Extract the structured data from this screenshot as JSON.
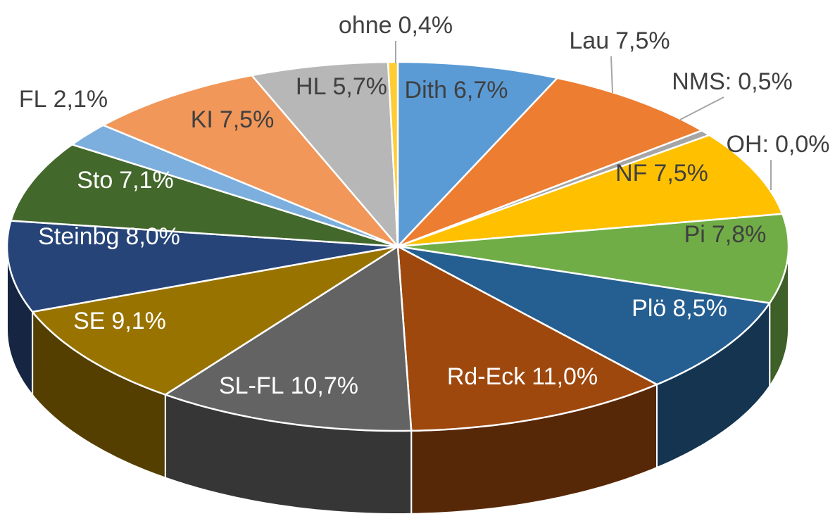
{
  "chart_data": {
    "type": "pie",
    "categories": [
      "Dith",
      "Lau",
      "NMS:",
      "NF",
      "OH:",
      "Pi",
      "Plö",
      "Rd-Eck",
      "SL-FL",
      "SE",
      "Steinbg",
      "Sto",
      "FL",
      "KI",
      "HL",
      "ohne"
    ],
    "values": [
      6.7,
      7.5,
      0.5,
      7.5,
      0.0,
      7.8,
      8.5,
      11.0,
      10.7,
      9.1,
      8.0,
      7.1,
      2.1,
      7.5,
      5.7,
      0.4
    ],
    "value_labels": [
      "6,7%",
      "7,5%",
      "0,5%",
      "7,5%",
      "0,0%",
      "7,8%",
      "8,5%",
      "11,0%",
      "10,7%",
      "9,1%",
      "8,0%",
      "7,1%",
      "2,1%",
      "7,5%",
      "5,7%",
      "0,4%"
    ],
    "colors": [
      "#5b9bd5",
      "#ed7d31",
      "#a5a5a5",
      "#ffc000",
      "#4472c4",
      "#70ad47",
      "#255e91",
      "#9e480e",
      "#636363",
      "#997300",
      "#264478",
      "#43682b",
      "#7cafdd",
      "#f1975a",
      "#b7b7b7",
      "#ffcd33"
    ]
  }
}
